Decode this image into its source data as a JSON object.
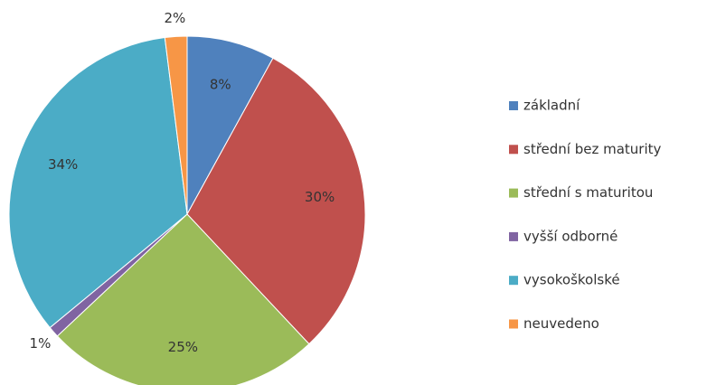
{
  "chart_data": {
    "type": "pie",
    "categories": [
      "základní",
      "střední bez maturity",
      "střední s maturitou",
      "vyšší odborné",
      "vysokoškolské",
      "neuvedeno"
    ],
    "values": [
      8,
      30,
      25,
      1,
      34,
      2
    ],
    "value_labels": [
      "8%",
      "30%",
      "25%",
      "1%",
      "34%",
      "2%"
    ],
    "colors": [
      "#4f81bd",
      "#c0504d",
      "#9bbb59",
      "#8064a2",
      "#4bacc6",
      "#f79646"
    ],
    "legend": "right"
  }
}
